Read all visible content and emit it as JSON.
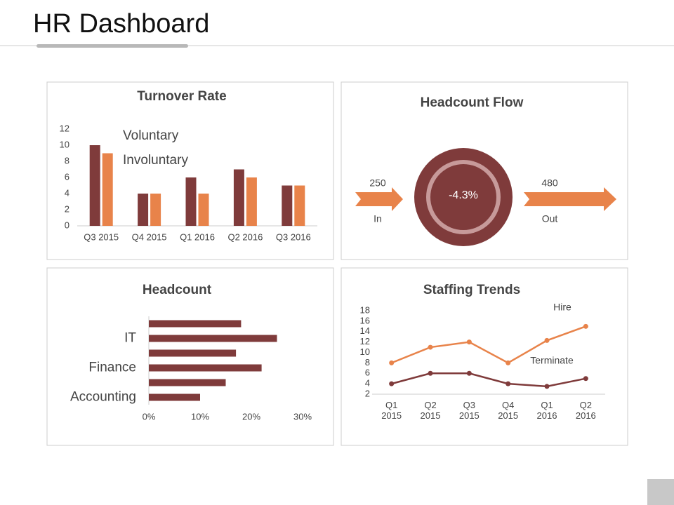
{
  "header": {
    "title": "HR Dashboard"
  },
  "headcount_flow": {
    "title": "Headcount Flow",
    "in_value": 250,
    "in_label": "In",
    "out_value": 480,
    "out_label": "Out",
    "change": "-4.3%"
  },
  "chart_data": [
    {
      "type": "bar",
      "title": "Turnover Rate",
      "categories": [
        "Q3 2015",
        "Q4 2015",
        "Q1 2016",
        "Q2 2016",
        "Q3 2016"
      ],
      "series": [
        {
          "name": "Voluntary",
          "color": "#7f3b3b",
          "values": [
            10,
            4,
            6,
            7,
            5
          ]
        },
        {
          "name": "Involuntary",
          "color": "#e8834a",
          "values": [
            9,
            4,
            4,
            6,
            5
          ]
        }
      ],
      "ylim": [
        0,
        12
      ],
      "yticks": [
        0,
        2,
        4,
        6,
        8,
        10,
        12
      ],
      "legend": "top-left"
    },
    {
      "type": "barh",
      "title": "Headcount",
      "categories": [
        null,
        "IT",
        null,
        "Finance",
        null,
        "Accounting"
      ],
      "values": [
        18,
        25,
        17,
        22,
        15,
        10
      ],
      "color": "#7f3b3b",
      "xlim": [
        0,
        30
      ],
      "xticks": [
        {
          "value": 0,
          "label": "0%"
        },
        {
          "value": 10,
          "label": "10%"
        },
        {
          "value": 20,
          "label": "20%"
        },
        {
          "value": 30,
          "label": "30%"
        }
      ]
    },
    {
      "type": "line",
      "title": "Staffing Trends",
      "categories": [
        "Q1 2015",
        "Q2 2015",
        "Q3 2015",
        "Q4 2015",
        "Q1 2016",
        "Q2 2016"
      ],
      "series": [
        {
          "name": "Hire",
          "color": "#e8834a",
          "values": [
            8,
            11,
            12,
            8,
            12.3,
            15
          ]
        },
        {
          "name": "Terminate",
          "color": "#7f3b3b",
          "values": [
            4,
            6,
            6,
            4,
            3.5,
            5
          ]
        }
      ],
      "ylim": [
        2,
        18
      ],
      "yticks": [
        2,
        4,
        6,
        8,
        10,
        12,
        14,
        16,
        18
      ]
    }
  ]
}
